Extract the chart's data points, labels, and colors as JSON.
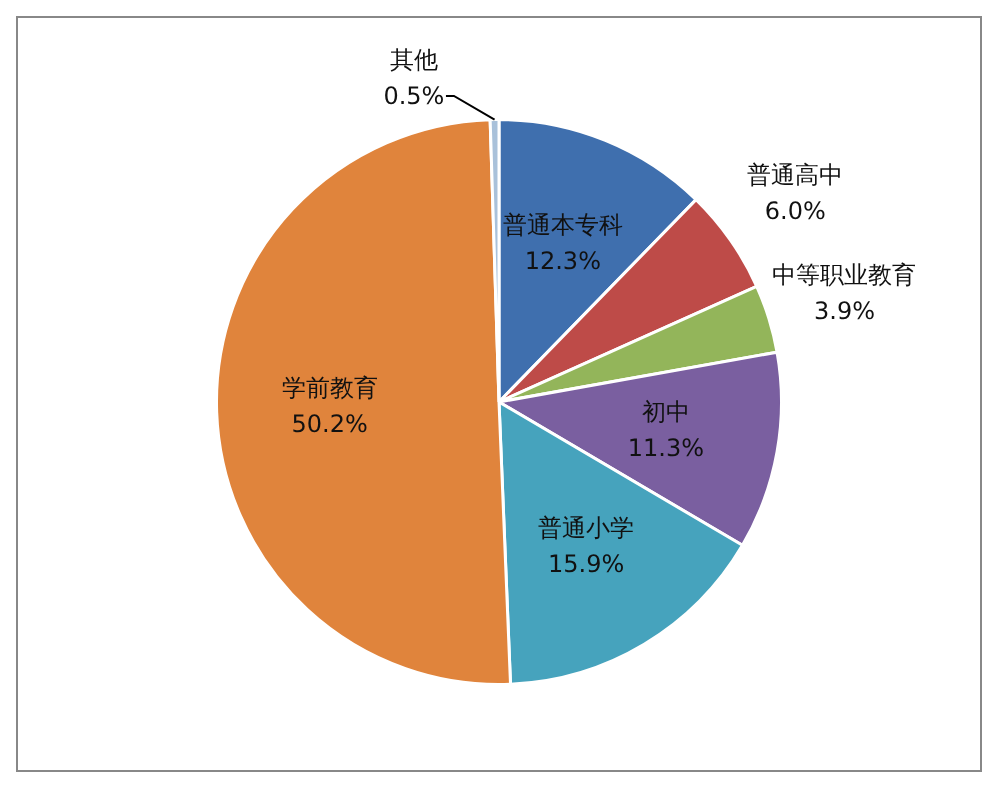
{
  "chart_data": {
    "type": "pie",
    "categories": [
      "普通本专科",
      "普通高中",
      "中等职业教育",
      "初中",
      "普通小学",
      "学前教育",
      "其他"
    ],
    "values": [
      12.3,
      6.0,
      3.9,
      11.3,
      15.9,
      50.2,
      0.5
    ],
    "colors": [
      "#3f6fae",
      "#be4b48",
      "#93b55a",
      "#7a5fa0",
      "#46a3bd",
      "#e0843c",
      "#a9c1da"
    ],
    "value_labels": [
      "12.3%",
      "6.0%",
      "3.9%",
      "11.3%",
      "15.9%",
      "50.2%",
      "0.5%"
    ],
    "legend": false
  }
}
